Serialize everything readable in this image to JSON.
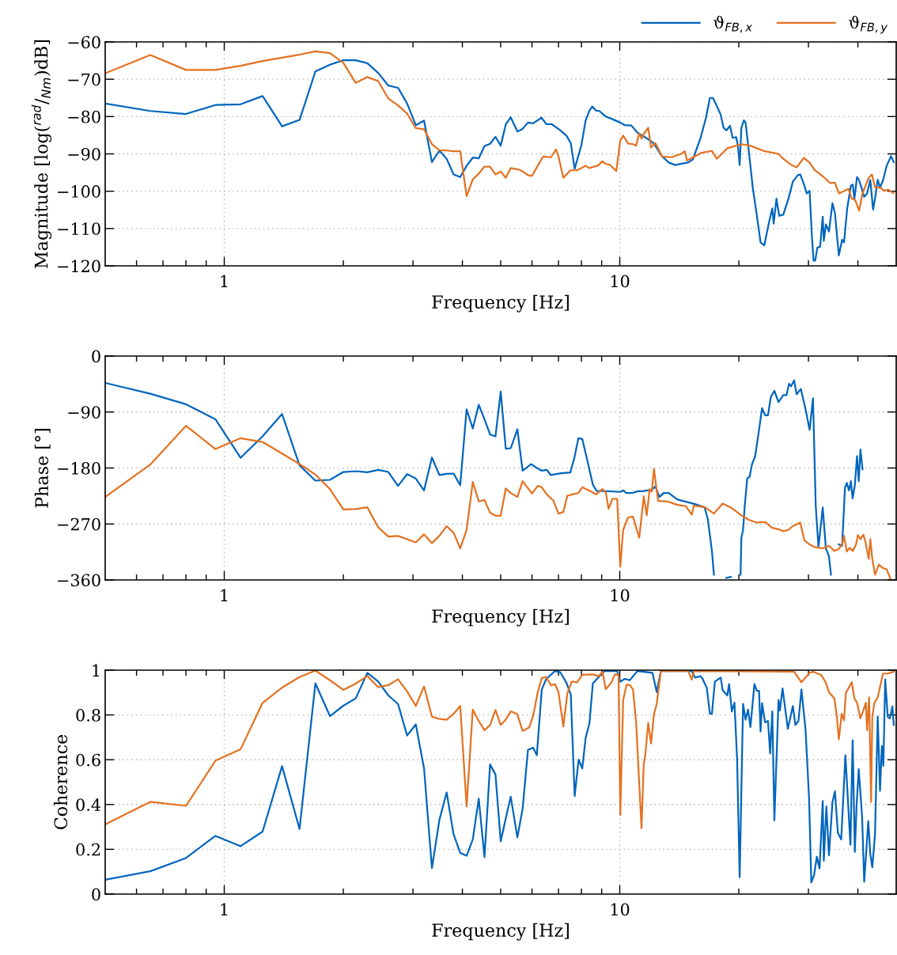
{
  "chart_data": [
    {
      "type": "line",
      "ylabel": "Magnitude [log($^{rad}$/$_{Nm}$)dB]",
      "xlabel": "Frequency [Hz]",
      "log": "x",
      "xlim": [
        0.5,
        50
      ],
      "xticks": [
        {
          "value": 0.6,
          "label": null
        },
        {
          "value": 0.7,
          "label": null
        },
        {
          "value": 0.8,
          "label": null
        },
        {
          "value": 0.9,
          "label": null
        },
        1,
        {
          "value": 2,
          "label": null
        },
        {
          "value": 3,
          "label": null
        },
        {
          "value": 4,
          "label": null
        },
        {
          "value": 5,
          "label": null
        },
        {
          "value": 6,
          "label": null
        },
        {
          "value": 7,
          "label": null
        },
        {
          "value": 8,
          "label": null
        },
        {
          "value": 9,
          "label": null
        },
        10,
        {
          "value": 20,
          "label": null
        },
        {
          "value": 30,
          "label": null
        },
        {
          "value": 40,
          "label": null
        }
      ],
      "ylim": [
        -120,
        -60
      ],
      "yticks": [
        {
          "value": -120,
          "label": "−120"
        },
        {
          "value": -110,
          "label": "−110"
        },
        {
          "value": -100,
          "label": "−100"
        },
        {
          "value": -90,
          "label": "−90"
        },
        {
          "value": -80,
          "label": "−80"
        },
        {
          "value": -70,
          "label": "−70"
        },
        {
          "value": -60,
          "label": "−60"
        }
      ],
      "grid": true,
      "legend": "top right",
      "series": [
        {
          "name": "ϑ$_{FB,x}$",
          "color": "#0065bd",
          "x": [
            0.5,
            0.65,
            0.8,
            0.95,
            1.1,
            1.25,
            1.4,
            1.55,
            1.7,
            1.85,
            2.0,
            2.15,
            2.3,
            2.45,
            2.6,
            2.75,
            2.9,
            3.05,
            3.2,
            3.35,
            3.5,
            3.65,
            3.8,
            3.95,
            4.1,
            4.25,
            4.4,
            4.55,
            4.7,
            4.85,
            5.0,
            5.15,
            5.3,
            5.51,
            5.68,
            5.86,
            6.04,
            6.34,
            6.52,
            6.72,
            7.06,
            7.33,
            7.52,
            7.69,
            8.0,
            8.2,
            8.38,
            8.52,
            8.71,
            8.88,
            9.22,
            9.58,
            10.03,
            10.3,
            10.7,
            11.1,
            11.7,
            12.2,
            12.8,
            13.3,
            13.8,
            14.5,
            14.9,
            15.3,
            16.0,
            16.5,
            16.9,
            17.2,
            17.6,
            18.0,
            18.3,
            18.6,
            19.0,
            19.3,
            19.7,
            19.9,
            20.1,
            20.3,
            20.6,
            20.8,
            21.2,
            21.7,
            22.2,
            22.7,
            23.2,
            23.8,
            24.3,
            24.5,
            24.9,
            25.3,
            25.9,
            26.7,
            27.4,
            28.2,
            28.6,
            29.3,
            29.7,
            30.2,
            30.6,
            30.9,
            31.2,
            31.6,
            32.1,
            32.6,
            32.8,
            33.2,
            33.8,
            34.5,
            35.0,
            35.8,
            36.5,
            36.9,
            37.6,
            38.4,
            38.8,
            39.2,
            39.8,
            40.3,
            40.9,
            41.5,
            42.2,
            43.0,
            43.7,
            44.2,
            44.9,
            45.5,
            46.3,
            47.3,
            48.5,
            49.3
          ],
          "values": [
            -76.5,
            -78.5,
            -79.3,
            -76.9,
            -76.7,
            -74.5,
            -82.6,
            -80.9,
            -67.9,
            -66.1,
            -64.9,
            -64.9,
            -65.7,
            -68.3,
            -71.7,
            -72.3,
            -76.5,
            -82.3,
            -81.1,
            -92.2,
            -89.1,
            -91.3,
            -95.5,
            -96.2,
            -93.2,
            -91.0,
            -91.2,
            -87.9,
            -87.3,
            -85.4,
            -87.8,
            -82.1,
            -80.2,
            -84.0,
            -83.3,
            -81.6,
            -81.8,
            -80.3,
            -82.0,
            -82.0,
            -83.6,
            -85.1,
            -87.1,
            -94.0,
            -87.6,
            -81.0,
            -78.4,
            -77.3,
            -78.4,
            -78.5,
            -80.0,
            -80.7,
            -81.6,
            -82.3,
            -82.4,
            -84.4,
            -85.8,
            -87.2,
            -90.7,
            -92.3,
            -93.0,
            -92.5,
            -92.3,
            -91.5,
            -85.8,
            -80.5,
            -75.0,
            -75.0,
            -77.2,
            -79.5,
            -83.0,
            -83.7,
            -82.5,
            -85.7,
            -85.5,
            -87.9,
            -93.0,
            -83.0,
            -81.0,
            -81.6,
            -89.3,
            -99.2,
            -106.3,
            -113.7,
            -114.5,
            -108.7,
            -104.6,
            -108.7,
            -102.0,
            -106.6,
            -106.3,
            -102.0,
            -97.4,
            -95.7,
            -95.5,
            -98.5,
            -100.6,
            -99.9,
            -111.9,
            -118.6,
            -118.6,
            -115.1,
            -114.9,
            -106.8,
            -113.3,
            -108.9,
            -110.8,
            -103.2,
            -105.9,
            -117.2,
            -113.0,
            -113.7,
            -104.5,
            -98.5,
            -98.2,
            -102.0,
            -96.2,
            -97.1,
            -99.2,
            -101.5,
            -100.6,
            -97.0,
            -104.9,
            -102.0,
            -96.9,
            -99.1,
            -97.1,
            -93.2,
            -90.6,
            -92.2
          ]
        },
        {
          "name": "ϑ$_{FB,y}$",
          "color": "#e37222",
          "x": [
            0.5,
            0.65,
            0.8,
            0.95,
            1.1,
            1.25,
            1.4,
            1.55,
            1.7,
            1.85,
            2.0,
            2.15,
            2.3,
            2.45,
            2.6,
            2.75,
            2.9,
            3.05,
            3.2,
            3.35,
            3.5,
            3.65,
            3.8,
            3.95,
            4.1,
            4.25,
            4.4,
            4.55,
            4.7,
            4.85,
            5.0,
            5.15,
            5.3,
            5.6,
            5.86,
            6.0,
            6.2,
            6.4,
            6.7,
            6.9,
            7.0,
            7.2,
            7.5,
            7.8,
            8.2,
            8.38,
            8.81,
            9.04,
            9.22,
            9.44,
            9.8,
            10.03,
            10.2,
            10.5,
            10.8,
            11.0,
            11.2,
            11.35,
            11.5,
            11.8,
            12.0,
            12.3,
            12.8,
            13.5,
            14.3,
            14.6,
            14.8,
            16.1,
            17.1,
            17.6,
            18.1,
            18.7,
            20.3,
            21.4,
            23.1,
            24.4,
            25.2,
            25.9,
            27.1,
            28.0,
            29.2,
            30.2,
            31.1,
            32.6,
            34.0,
            35.0,
            35.8,
            37.9,
            38.6,
            39.4,
            40.3,
            41.1,
            42.6,
            43.4,
            44.2,
            45.7,
            46.6,
            47.7,
            49.2
          ],
          "values": [
            -68.4,
            -63.5,
            -67.5,
            -67.5,
            -66.4,
            -65.1,
            -64.2,
            -63.4,
            -62.5,
            -63.0,
            -65.6,
            -71.0,
            -69.4,
            -70.5,
            -75.2,
            -77.0,
            -79.2,
            -83.1,
            -83.4,
            -87.4,
            -89.0,
            -89.1,
            -89.3,
            -89.3,
            -101.3,
            -96.8,
            -95.3,
            -93.4,
            -93.4,
            -95.5,
            -94.7,
            -96.4,
            -93.8,
            -94.3,
            -95.7,
            -95.9,
            -93.2,
            -90.7,
            -90.9,
            -88.8,
            -90.7,
            -96.4,
            -94.4,
            -94.4,
            -93.2,
            -93.8,
            -93.1,
            -92.0,
            -92.7,
            -92.9,
            -94.6,
            -86.5,
            -85.1,
            -87.2,
            -87.4,
            -87.8,
            -84.5,
            -85.9,
            -84.7,
            -83.0,
            -88.3,
            -87.1,
            -90.7,
            -90.9,
            -90.0,
            -89.3,
            -91.8,
            -89.7,
            -89.2,
            -91.3,
            -90.0,
            -88.5,
            -87.4,
            -87.8,
            -89.2,
            -89.7,
            -90.0,
            -91.3,
            -92.9,
            -93.6,
            -91.1,
            -92.3,
            -94.3,
            -96.0,
            -97.8,
            -97.7,
            -100.6,
            -99.4,
            -102.0,
            -102.4,
            -105.2,
            -100.6,
            -96.4,
            -95.5,
            -98.9,
            -99.1,
            -99.9,
            -99.6,
            -100.5
          ]
        }
      ]
    },
    {
      "type": "line",
      "ylabel": "Phase [°]",
      "xlabel": "Frequency [Hz]",
      "log": "x",
      "xlim": [
        0.5,
        50
      ],
      "xticks": [
        {
          "value": 0.6,
          "label": null
        },
        {
          "value": 0.7,
          "label": null
        },
        {
          "value": 0.8,
          "label": null
        },
        {
          "value": 0.9,
          "label": null
        },
        1,
        {
          "value": 2,
          "label": null
        },
        {
          "value": 3,
          "label": null
        },
        {
          "value": 4,
          "label": null
        },
        {
          "value": 5,
          "label": null
        },
        {
          "value": 6,
          "label": null
        },
        {
          "value": 7,
          "label": null
        },
        {
          "value": 8,
          "label": null
        },
        {
          "value": 9,
          "label": null
        },
        10,
        {
          "value": 20,
          "label": null
        },
        {
          "value": 30,
          "label": null
        },
        {
          "value": 40,
          "label": null
        }
      ],
      "ylim": [
        -360,
        0
      ],
      "yticks": [
        {
          "value": -360,
          "label": "−360"
        },
        {
          "value": -270,
          "label": "−270"
        },
        {
          "value": -180,
          "label": "−180"
        },
        {
          "value": -90,
          "label": "−90"
        },
        0
      ],
      "grid": true,
      "series": [
        {
          "color": "#0065bd",
          "x": [
            0.5,
            0.65,
            0.8,
            0.95,
            1.1,
            1.25,
            1.4,
            1.55,
            1.7,
            1.85,
            2.0,
            2.15,
            2.3,
            2.45,
            2.6,
            2.75,
            2.9,
            3.05,
            3.2,
            3.35,
            3.5,
            3.65,
            3.8,
            3.95,
            4.1,
            4.25,
            4.4,
            4.55,
            4.7,
            4.85,
            5.0,
            5.15,
            5.3,
            5.51,
            5.68,
            5.97,
            6.17,
            6.34,
            6.54,
            6.69,
            7.11,
            7.5,
            7.68,
            7.86,
            8.04,
            8.29,
            8.55,
            8.74,
            9.44,
            10.03,
            10.2,
            10.4,
            10.8,
            11.1,
            11.4,
            11.7,
            12.0,
            12.3,
            12.6,
            12.9,
            13.3,
            14.0,
            14.9,
            15.5,
            16.4,
            16.7,
            17.1,
            17.3,
            17.6,
            18.6,
            19.1,
            19.6,
            20.2,
            20.3,
            20.5,
            20.7,
            21.0,
            21.3,
            21.6,
            22.0,
            22.4,
            22.9,
            23.3,
            23.7,
            24.1,
            24.6,
            25.2,
            25.9,
            26.4,
            26.8,
            27.1,
            27.6,
            28.0,
            28.7,
            29.5,
            30.2,
            30.8,
            31.3,
            31.8,
            32.6,
            33.2,
            33.8,
            34.2,
            34.5,
            35.4,
            35.8,
            36.5,
            37.1,
            37.5,
            38.0,
            38.4,
            38.8,
            39.3,
            39.8,
            40.2,
            40.6,
            41.1
          ],
          "values": [
            -43.2,
            -60.6,
            -77.5,
            -101.7,
            -163.5,
            -129.2,
            -93.2,
            -175.8,
            -200.3,
            -199.1,
            -186.4,
            -185.1,
            -186.8,
            -183.0,
            -186.4,
            -208.8,
            -189.8,
            -196.9,
            -216.0,
            -163.1,
            -191.4,
            -189.3,
            -188.9,
            -207.5,
            -85.6,
            -116.5,
            -78.4,
            -101.7,
            -126.2,
            -129.2,
            -57.2,
            -149.1,
            -148.2,
            -117.7,
            -184.2,
            -173.7,
            -180.0,
            -184.2,
            -183.0,
            -191.4,
            -188.5,
            -187.2,
            -163.1,
            -132.1,
            -133.4,
            -169.4,
            -206.7,
            -216.9,
            -217.3,
            -218.5,
            -216.0,
            -220.2,
            -219.8,
            -217.3,
            -217.3,
            -216.0,
            -216.0,
            -209.7,
            -226.6,
            -220.2,
            -220.2,
            -230.8,
            -235.1,
            -238.0,
            -243.5,
            -262.6,
            -313.4,
            -351.5,
            null,
            -356.6,
            -354.9,
            null,
            -351.5,
            -292.2,
            -279.5,
            -241.4,
            -197.0,
            -194.0,
            -173.7,
            -160.9,
            -127.1,
            -83.9,
            -95.3,
            -95.3,
            -65.6,
            -55.9,
            -74.1,
            -62.7,
            -62.7,
            -44.5,
            -48.7,
            -39.0,
            -61.4,
            -52.9,
            -85.6,
            -118.6,
            -67.8,
            -241.4,
            -307.0,
            -243.5,
            -309.2,
            -321.9,
            -351.5,
            null,
            null,
            -302.8,
            -305.0,
            -211.8,
            -204.1,
            -216.0,
            -201.2,
            -228.7,
            -207.5,
            -160.9,
            -201.2,
            -150.4,
            -182.1
          ]
        },
        {
          "color": "#e37222",
          "x": [
            0.5,
            0.65,
            0.8,
            0.95,
            1.1,
            1.25,
            1.4,
            1.55,
            1.7,
            1.85,
            2.0,
            2.15,
            2.3,
            2.45,
            2.6,
            2.75,
            2.9,
            3.05,
            3.2,
            3.35,
            3.5,
            3.65,
            3.8,
            3.95,
            4.1,
            4.25,
            4.4,
            4.55,
            4.7,
            4.85,
            5.0,
            5.15,
            5.3,
            5.51,
            5.68,
            6.0,
            6.2,
            6.34,
            6.54,
            6.79,
            7.0,
            7.2,
            7.37,
            7.86,
            8.04,
            8.35,
            8.71,
            9.04,
            9.22,
            9.37,
            9.58,
            9.85,
            10.03,
            10.2,
            10.5,
            10.8,
            11.2,
            11.5,
            11.7,
            11.9,
            12.05,
            12.2,
            12.5,
            13.2,
            14.0,
            14.7,
            15.2,
            15.4,
            16.4,
            17.3,
            18.2,
            19.1,
            20.3,
            21.2,
            22.2,
            23.3,
            24.3,
            25.3,
            25.9,
            26.7,
            27.4,
            28.6,
            29.3,
            30.2,
            31.1,
            32.6,
            33.8,
            34.9,
            35.8,
            36.5,
            36.9,
            37.5,
            38.1,
            38.8,
            39.6,
            40.0,
            40.6,
            41.3,
            41.8,
            42.6,
            43.0,
            43.5,
            44.2,
            45.2,
            46.3,
            47.3,
            48.4
          ],
          "values": [
            -226.6,
            -174.5,
            -112.2,
            -149.5,
            -132.1,
            -138.1,
            -156.7,
            -173.7,
            -190.6,
            -213.9,
            -246.5,
            -246.1,
            -243.1,
            -275.3,
            -290.1,
            -289.3,
            -294.4,
            -299.5,
            -286.7,
            -300.7,
            -288.9,
            -273.6,
            -283.8,
            -309.2,
            -279.5,
            -202.5,
            -233.8,
            -231.3,
            -252.0,
            -256.7,
            -256.7,
            -213.0,
            -220.2,
            -226.6,
            -201.2,
            -221.1,
            -208.8,
            -210.5,
            -222.4,
            -232.1,
            -253.3,
            -250.7,
            -224.5,
            -220.2,
            -210.9,
            -216.0,
            -222.4,
            -213.9,
            -219.4,
            -245.7,
            -229.6,
            -229.6,
            -338.8,
            -279.5,
            -259.2,
            -258.4,
            -292.2,
            -225.7,
            -256.2,
            -213.9,
            -218.1,
            -181.3,
            -232.9,
            -233.8,
            -239.3,
            -241.4,
            -255.0,
            -240.6,
            -242.7,
            -253.3,
            -237.2,
            -243.5,
            -256.2,
            -263.4,
            -267.7,
            -266.8,
            -276.2,
            -278.7,
            -281.7,
            -279.5,
            -273.2,
            -267.7,
            -296.5,
            -302.8,
            -307.1,
            -309.2,
            -305.0,
            -313.4,
            -310.0,
            -302.8,
            -288.9,
            -314.3,
            -308.3,
            -313.4,
            -302.8,
            -288.0,
            -294.4,
            -287.2,
            -298.6,
            -326.1,
            -294.4,
            -326.1,
            -351.5,
            -335.4,
            -341.0,
            -343.0,
            -359.0
          ]
        }
      ]
    },
    {
      "type": "line",
      "ylabel": "Coherence",
      "xlabel": "Frequency [Hz]",
      "log": "x",
      "xlim": [
        0.5,
        50
      ],
      "xticks": [
        {
          "value": 0.6,
          "label": null
        },
        {
          "value": 0.7,
          "label": null
        },
        {
          "value": 0.8,
          "label": null
        },
        {
          "value": 0.9,
          "label": null
        },
        1,
        {
          "value": 2,
          "label": null
        },
        {
          "value": 3,
          "label": null
        },
        {
          "value": 4,
          "label": null
        },
        {
          "value": 5,
          "label": null
        },
        {
          "value": 6,
          "label": null
        },
        {
          "value": 7,
          "label": null
        },
        {
          "value": 8,
          "label": null
        },
        {
          "value": 9,
          "label": null
        },
        10,
        {
          "value": 20,
          "label": null
        },
        {
          "value": 30,
          "label": null
        },
        {
          "value": 40,
          "label": null
        }
      ],
      "ylim": [
        0,
        1
      ],
      "yticks": [
        0,
        0.2,
        0.4,
        0.6,
        0.8,
        1
      ],
      "grid": true,
      "series": [
        {
          "color": "#0065bd",
          "x": [
            0.5,
            0.65,
            0.8,
            0.95,
            1.1,
            1.25,
            1.4,
            1.55,
            1.7,
            1.85,
            2.0,
            2.15,
            2.3,
            2.45,
            2.6,
            2.75,
            2.9,
            3.05,
            3.2,
            3.35,
            3.5,
            3.65,
            3.8,
            3.95,
            4.1,
            4.25,
            4.4,
            4.55,
            4.7,
            4.85,
            5.0,
            5.15,
            5.3,
            5.51,
            5.68,
            5.86,
            6.04,
            6.17,
            6.35,
            6.52,
            6.86,
            7.07,
            7.33,
            7.52,
            7.69,
            7.87,
            8.04,
            8.2,
            8.38,
            8.55,
            8.88,
            9.15,
            9.85,
            10.03,
            10.3,
            10.6,
            11.08,
            12.1,
            12.4,
            12.7,
            15.2,
            15.5,
            16.0,
            16.2,
            16.6,
            16.9,
            17.1,
            17.4,
            18.0,
            18.2,
            18.7,
            18.9,
            19.2,
            19.5,
            19.8,
            20.1,
            20.5,
            20.8,
            21.1,
            21.4,
            21.9,
            22.2,
            22.5,
            22.7,
            22.9,
            23.3,
            23.7,
            24.0,
            24.3,
            24.6,
            25.2,
            25.4,
            25.8,
            26.6,
            27.4,
            27.8,
            28.3,
            28.8,
            29.5,
            30.1,
            30.5,
            31.0,
            31.5,
            32.0,
            32.6,
            32.8,
            33.3,
            33.8,
            34.5,
            35.0,
            35.6,
            36.3,
            37.2,
            38.3,
            38.8,
            39.3,
            39.7,
            40.2,
            41.0,
            41.5,
            42.5,
            43.0,
            43.5,
            44.2,
            44.9,
            45.5,
            46.0,
            46.4,
            46.9,
            47.6,
            48.2,
            48.9,
            49.3
          ],
          "values": [
            0.064,
            0.102,
            0.161,
            0.26,
            0.214,
            0.279,
            0.571,
            0.291,
            0.941,
            0.795,
            0.841,
            0.874,
            0.988,
            0.949,
            0.887,
            0.849,
            0.708,
            0.758,
            0.561,
            0.116,
            0.332,
            0.454,
            0.267,
            0.184,
            0.171,
            0.244,
            0.426,
            0.165,
            0.579,
            0.534,
            0.235,
            0.338,
            0.435,
            0.253,
            0.381,
            0.644,
            0.654,
            0.62,
            0.914,
            0.961,
            0.996,
            0.991,
            0.944,
            0.891,
            0.438,
            0.6,
            0.561,
            0.699,
            0.761,
            0.941,
            0.973,
            0.996,
            0.996,
            0.949,
            0.961,
            0.955,
            0.996,
            0.988,
            0.902,
            0.996,
            0.996,
            0.967,
            0.973,
            0.961,
            0.92,
            0.805,
            0.805,
            0.949,
            0.967,
            0.911,
            0.887,
            0.938,
            0.816,
            0.855,
            0.602,
            0.075,
            0.849,
            0.779,
            0.824,
            0.746,
            0.938,
            0.908,
            0.908,
            0.726,
            0.852,
            0.767,
            0.773,
            0.628,
            0.816,
            0.329,
            0.867,
            0.82,
            0.918,
            0.738,
            0.84,
            0.755,
            0.773,
            0.914,
            0.732,
            0.432,
            0.052,
            0.085,
            0.167,
            0.114,
            0.416,
            0.149,
            0.391,
            0.173,
            0.412,
            0.459,
            0.273,
            0.244,
            0.62,
            0.22,
            0.687,
            0.188,
            0.396,
            0.558,
            0.344,
            0.055,
            0.326,
            0.179,
            0.12,
            0.267,
            0.793,
            0.461,
            0.661,
            0.573,
            0.958,
            0.791,
            0.785,
            0.838,
            0.755
          ]
        },
        {
          "color": "#e37222",
          "x": [
            0.5,
            0.65,
            0.8,
            0.95,
            1.1,
            1.25,
            1.4,
            1.55,
            1.7,
            1.85,
            2.0,
            2.15,
            2.3,
            2.45,
            2.6,
            2.75,
            2.9,
            3.05,
            3.2,
            3.35,
            3.5,
            3.65,
            3.8,
            3.95,
            4.1,
            4.25,
            4.4,
            4.55,
            4.7,
            4.85,
            5.0,
            5.15,
            5.3,
            5.5,
            5.68,
            5.9,
            6.04,
            6.2,
            6.35,
            6.52,
            6.7,
            6.86,
            7.0,
            7.2,
            7.37,
            7.56,
            7.8,
            8.04,
            8.55,
            8.85,
            9.04,
            9.22,
            9.52,
            9.71,
            9.93,
            10.03,
            10.2,
            10.4,
            10.6,
            10.8,
            11.0,
            11.35,
            11.5,
            11.6,
            11.8,
            12.0,
            12.2,
            12.4,
            12.7,
            14.9,
            15.2,
            15.4,
            27.6,
            28.8,
            30.2,
            30.8,
            32.3,
            33.2,
            33.8,
            34.9,
            35.4,
            35.8,
            36.4,
            36.9,
            37.3,
            37.9,
            38.6,
            39.2,
            39.8,
            40.6,
            41.3,
            41.9,
            42.2,
            42.7,
            43.2,
            43.5,
            44.0,
            44.9,
            46.3,
            47.6,
            49.3
          ],
          "values": [
            0.311,
            0.412,
            0.394,
            0.596,
            0.647,
            0.854,
            0.922,
            0.969,
            0.998,
            0.955,
            0.912,
            0.94,
            0.974,
            0.924,
            0.933,
            0.96,
            0.905,
            0.84,
            0.927,
            0.793,
            0.782,
            0.779,
            0.805,
            0.84,
            0.391,
            0.824,
            0.773,
            0.732,
            0.755,
            0.822,
            0.755,
            0.779,
            0.816,
            0.805,
            0.729,
            0.744,
            0.796,
            0.899,
            0.965,
            0.969,
            0.932,
            0.938,
            0.902,
            0.749,
            0.896,
            0.949,
            0.946,
            0.979,
            0.981,
            0.973,
            0.993,
            0.915,
            0.944,
            0.981,
            0.979,
            0.353,
            0.867,
            0.934,
            0.934,
            0.914,
            0.767,
            0.294,
            0.581,
            0.62,
            0.765,
            0.673,
            0.802,
            0.849,
            0.996,
            0.996,
            0.958,
            0.996,
            0.993,
            0.946,
            0.988,
            0.993,
            0.979,
            0.944,
            0.902,
            0.873,
            0.791,
            0.691,
            0.805,
            0.776,
            0.899,
            0.92,
            0.946,
            0.873,
            0.855,
            0.785,
            0.82,
            0.855,
            0.732,
            0.879,
            0.412,
            0.791,
            0.852,
            0.879,
            0.985,
            0.985,
            0.993
          ]
        }
      ]
    }
  ]
}
